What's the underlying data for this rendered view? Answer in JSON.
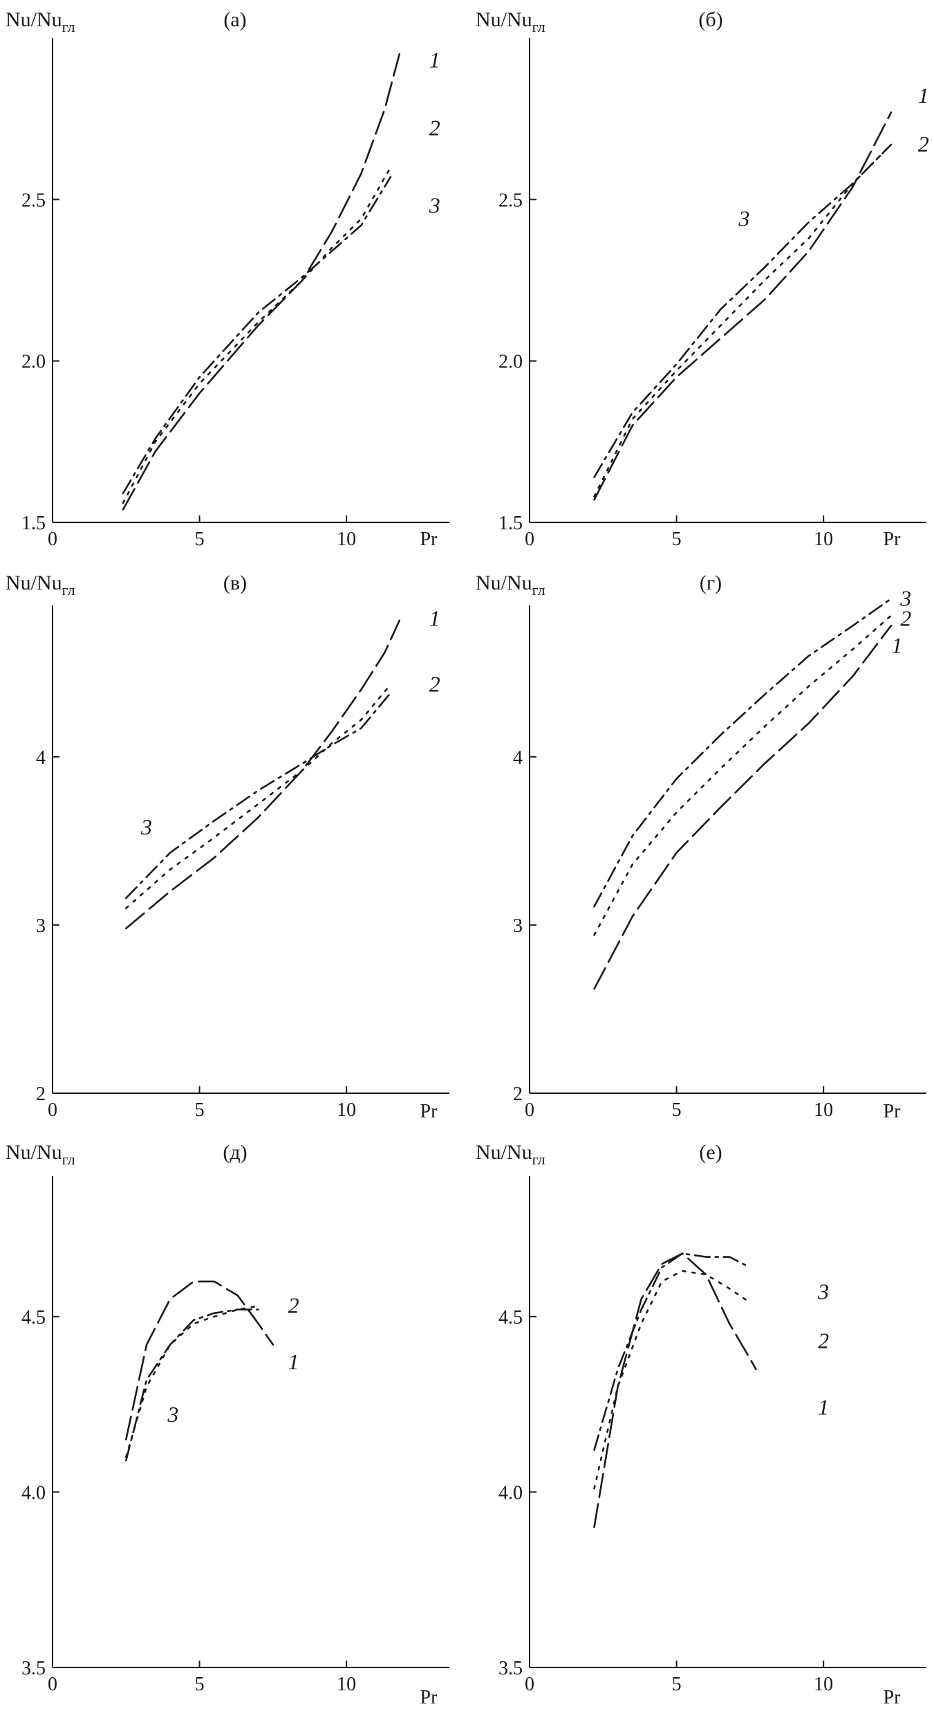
{
  "chart_data": [
    {
      "type": "line",
      "panel_label": "(а)",
      "ylabel": "Nu/Nu",
      "ylabel_sub": "гл",
      "xlabel": "Pr",
      "xlim": [
        0,
        13.5
      ],
      "ylim": [
        1.5,
        3.0
      ],
      "xticks": [
        0,
        5,
        10
      ],
      "yticks": [
        1.5,
        2.0,
        2.5
      ],
      "ytick_labels": [
        "1.5",
        "2.0",
        "2.5"
      ],
      "series": [
        {
          "name": "1",
          "x": [
            2.4,
            3.5,
            5,
            7,
            8.5,
            9.5,
            10.5,
            11.3,
            11.8
          ],
          "y": [
            1.54,
            1.72,
            1.9,
            2.11,
            2.25,
            2.4,
            2.58,
            2.78,
            2.95
          ]
        },
        {
          "name": "2",
          "x": [
            2.4,
            3.5,
            5,
            7,
            8.5,
            9.5,
            10.5,
            11.5
          ],
          "y": [
            1.56,
            1.75,
            1.93,
            2.12,
            2.25,
            2.35,
            2.44,
            2.6
          ]
        },
        {
          "name": "3",
          "x": [
            2.4,
            3.5,
            5,
            7,
            8.5,
            9.5,
            10.5,
            11.5
          ],
          "y": [
            1.59,
            1.76,
            1.95,
            2.15,
            2.26,
            2.34,
            2.42,
            2.57
          ]
        }
      ],
      "curve_labels": [
        {
          "text": "1",
          "x": 13.0,
          "y": 2.93
        },
        {
          "text": "2",
          "x": 13.0,
          "y": 2.72
        },
        {
          "text": "3",
          "x": 13.0,
          "y": 2.48
        }
      ]
    },
    {
      "type": "line",
      "panel_label": "(б)",
      "ylabel": "Nu/Nu",
      "ylabel_sub": "гл",
      "xlabel": "Pr",
      "xlim": [
        0,
        13.5
      ],
      "ylim": [
        1.5,
        3.0
      ],
      "xticks": [
        0,
        5,
        10
      ],
      "yticks": [
        1.5,
        2.0,
        2.5
      ],
      "ytick_labels": [
        "1.5",
        "2.0",
        "2.5"
      ],
      "series": [
        {
          "name": "1",
          "x": [
            2.2,
            3.5,
            5,
            6.5,
            8,
            9.5,
            11,
            12.3
          ],
          "y": [
            1.57,
            1.8,
            1.95,
            2.07,
            2.19,
            2.34,
            2.54,
            2.77
          ]
        },
        {
          "name": "2",
          "x": [
            2.2,
            3.5,
            5,
            6.5,
            8,
            9.5,
            11,
            12.3
          ],
          "y": [
            1.58,
            1.82,
            1.97,
            2.11,
            2.25,
            2.38,
            2.55,
            2.67
          ]
        },
        {
          "name": "3",
          "x": [
            2.2,
            3.5,
            5,
            6.5,
            8,
            9.5,
            11,
            12.3
          ],
          "y": [
            1.64,
            1.84,
            1.99,
            2.16,
            2.29,
            2.43,
            2.55,
            2.67
          ]
        }
      ],
      "curve_labels": [
        {
          "text": "1",
          "x": 13.4,
          "y": 2.82
        },
        {
          "text": "2",
          "x": 13.4,
          "y": 2.67
        },
        {
          "text": "3",
          "x": 7.3,
          "y": 2.44
        }
      ]
    },
    {
      "type": "line",
      "panel_label": "(в)",
      "ylabel": "Nu/Nu",
      "ylabel_sub": "гл",
      "xlabel": "Pr",
      "xlim": [
        0,
        13.5
      ],
      "ylim": [
        2.0,
        4.9
      ],
      "xticks": [
        0,
        5,
        10
      ],
      "yticks": [
        2,
        3,
        4
      ],
      "ytick_labels": [
        "2",
        "3",
        "4"
      ],
      "series": [
        {
          "name": "1",
          "x": [
            2.5,
            4,
            5.5,
            7,
            8.5,
            9.5,
            10.5,
            11.3,
            11.8
          ],
          "y": [
            2.98,
            3.2,
            3.4,
            3.64,
            3.92,
            4.15,
            4.4,
            4.62,
            4.81
          ]
        },
        {
          "name": "2",
          "x": [
            2.5,
            4,
            5.5,
            7,
            8.5,
            9.5,
            10.5,
            11.5
          ],
          "y": [
            3.1,
            3.33,
            3.52,
            3.72,
            3.92,
            4.08,
            4.22,
            4.43
          ]
        },
        {
          "name": "3",
          "x": [
            2.5,
            4,
            5.5,
            7,
            8.5,
            9.5,
            10.5,
            11.5
          ],
          "y": [
            3.16,
            3.43,
            3.62,
            3.8,
            3.96,
            4.07,
            4.17,
            4.38
          ]
        }
      ],
      "curve_labels": [
        {
          "text": "1",
          "x": 13.0,
          "y": 4.82
        },
        {
          "text": "2",
          "x": 13.0,
          "y": 4.43
        },
        {
          "text": "3",
          "x": 3.2,
          "y": 3.58
        }
      ]
    },
    {
      "type": "line",
      "panel_label": "(г)",
      "ylabel": "Nu/Nu",
      "ylabel_sub": "гл",
      "xlabel": "Pr",
      "xlim": [
        0,
        13.5
      ],
      "ylim": [
        2.0,
        4.9
      ],
      "xticks": [
        0,
        5,
        10
      ],
      "yticks": [
        2,
        3,
        4
      ],
      "ytick_labels": [
        "2",
        "3",
        "4"
      ],
      "series": [
        {
          "name": "1",
          "x": [
            2.2,
            3.5,
            5,
            6.5,
            8,
            9.5,
            11,
            12.3
          ],
          "y": [
            2.62,
            3.05,
            3.43,
            3.7,
            3.96,
            4.2,
            4.48,
            4.78
          ]
        },
        {
          "name": "2",
          "x": [
            2.2,
            3.5,
            5,
            6.5,
            8,
            9.5,
            11,
            12.3
          ],
          "y": [
            2.94,
            3.36,
            3.67,
            3.93,
            4.18,
            4.42,
            4.64,
            4.84
          ]
        },
        {
          "name": "3",
          "x": [
            2.2,
            3.5,
            5,
            6.5,
            8,
            9.5,
            11,
            12.3
          ],
          "y": [
            3.11,
            3.53,
            3.87,
            4.13,
            4.37,
            4.6,
            4.78,
            4.94
          ]
        }
      ],
      "curve_labels": [
        {
          "text": "3",
          "x": 12.8,
          "y": 4.94
        },
        {
          "text": "2",
          "x": 12.8,
          "y": 4.82
        },
        {
          "text": "1",
          "x": 12.5,
          "y": 4.66
        }
      ]
    },
    {
      "type": "line",
      "panel_label": "(д)",
      "ylabel": "Nu/Nu",
      "ylabel_sub": "гл",
      "xlabel": "Pr",
      "xlim": [
        0,
        13.5
      ],
      "ylim": [
        3.5,
        4.9
      ],
      "xticks": [
        0,
        5,
        10
      ],
      "yticks": [
        3.5,
        4.0,
        4.5
      ],
      "ytick_labels": [
        "3.5",
        "4.0",
        "4.5"
      ],
      "series": [
        {
          "name": "1",
          "x": [
            2.5,
            3.2,
            4,
            4.8,
            5.5,
            6.3,
            7.0,
            7.5
          ],
          "y": [
            4.15,
            4.42,
            4.55,
            4.6,
            4.6,
            4.56,
            4.48,
            4.42
          ]
        },
        {
          "name": "2",
          "x": [
            2.5,
            3.2,
            4,
            4.8,
            5.5,
            6.3,
            7.0
          ],
          "y": [
            4.1,
            4.3,
            4.42,
            4.48,
            4.5,
            4.52,
            4.53
          ]
        },
        {
          "name": "3",
          "x": [
            2.5,
            3.2,
            4,
            4.8,
            5.5,
            6.3,
            7.0
          ],
          "y": [
            4.09,
            4.32,
            4.42,
            4.49,
            4.51,
            4.52,
            4.52
          ]
        }
      ],
      "curve_labels": [
        {
          "text": "2",
          "x": 8.2,
          "y": 4.53
        },
        {
          "text": "1",
          "x": 8.2,
          "y": 4.37
        },
        {
          "text": "3",
          "x": 4.1,
          "y": 4.22
        }
      ]
    },
    {
      "type": "line",
      "panel_label": "(е)",
      "ylabel": "Nu/Nu",
      "ylabel_sub": "гл",
      "xlabel": "Pr",
      "xlim": [
        0,
        13.5
      ],
      "ylim": [
        3.5,
        4.9
      ],
      "xticks": [
        0,
        5,
        10
      ],
      "yticks": [
        3.5,
        4.0,
        4.5
      ],
      "ytick_labels": [
        "3.5",
        "4.0",
        "4.5"
      ],
      "series": [
        {
          "name": "1",
          "x": [
            2.2,
            3.0,
            3.8,
            4.5,
            5.2,
            6.0,
            6.8,
            7.5,
            7.7
          ],
          "y": [
            3.9,
            4.3,
            4.55,
            4.65,
            4.68,
            4.62,
            4.48,
            4.38,
            4.35
          ]
        },
        {
          "name": "2",
          "x": [
            2.2,
            3.0,
            3.8,
            4.5,
            5.2,
            6.0,
            6.8,
            7.5
          ],
          "y": [
            4.01,
            4.3,
            4.48,
            4.6,
            4.63,
            4.62,
            4.58,
            4.54
          ]
        },
        {
          "name": "3",
          "x": [
            2.2,
            3.0,
            3.8,
            4.5,
            5.2,
            6.0,
            6.8,
            7.5
          ],
          "y": [
            4.12,
            4.35,
            4.52,
            4.64,
            4.68,
            4.67,
            4.67,
            4.64
          ]
        }
      ],
      "curve_labels": [
        {
          "text": "3",
          "x": 10.0,
          "y": 4.57
        },
        {
          "text": "2",
          "x": 10.0,
          "y": 4.43
        },
        {
          "text": "1",
          "x": 10.0,
          "y": 4.24
        }
      ]
    }
  ]
}
